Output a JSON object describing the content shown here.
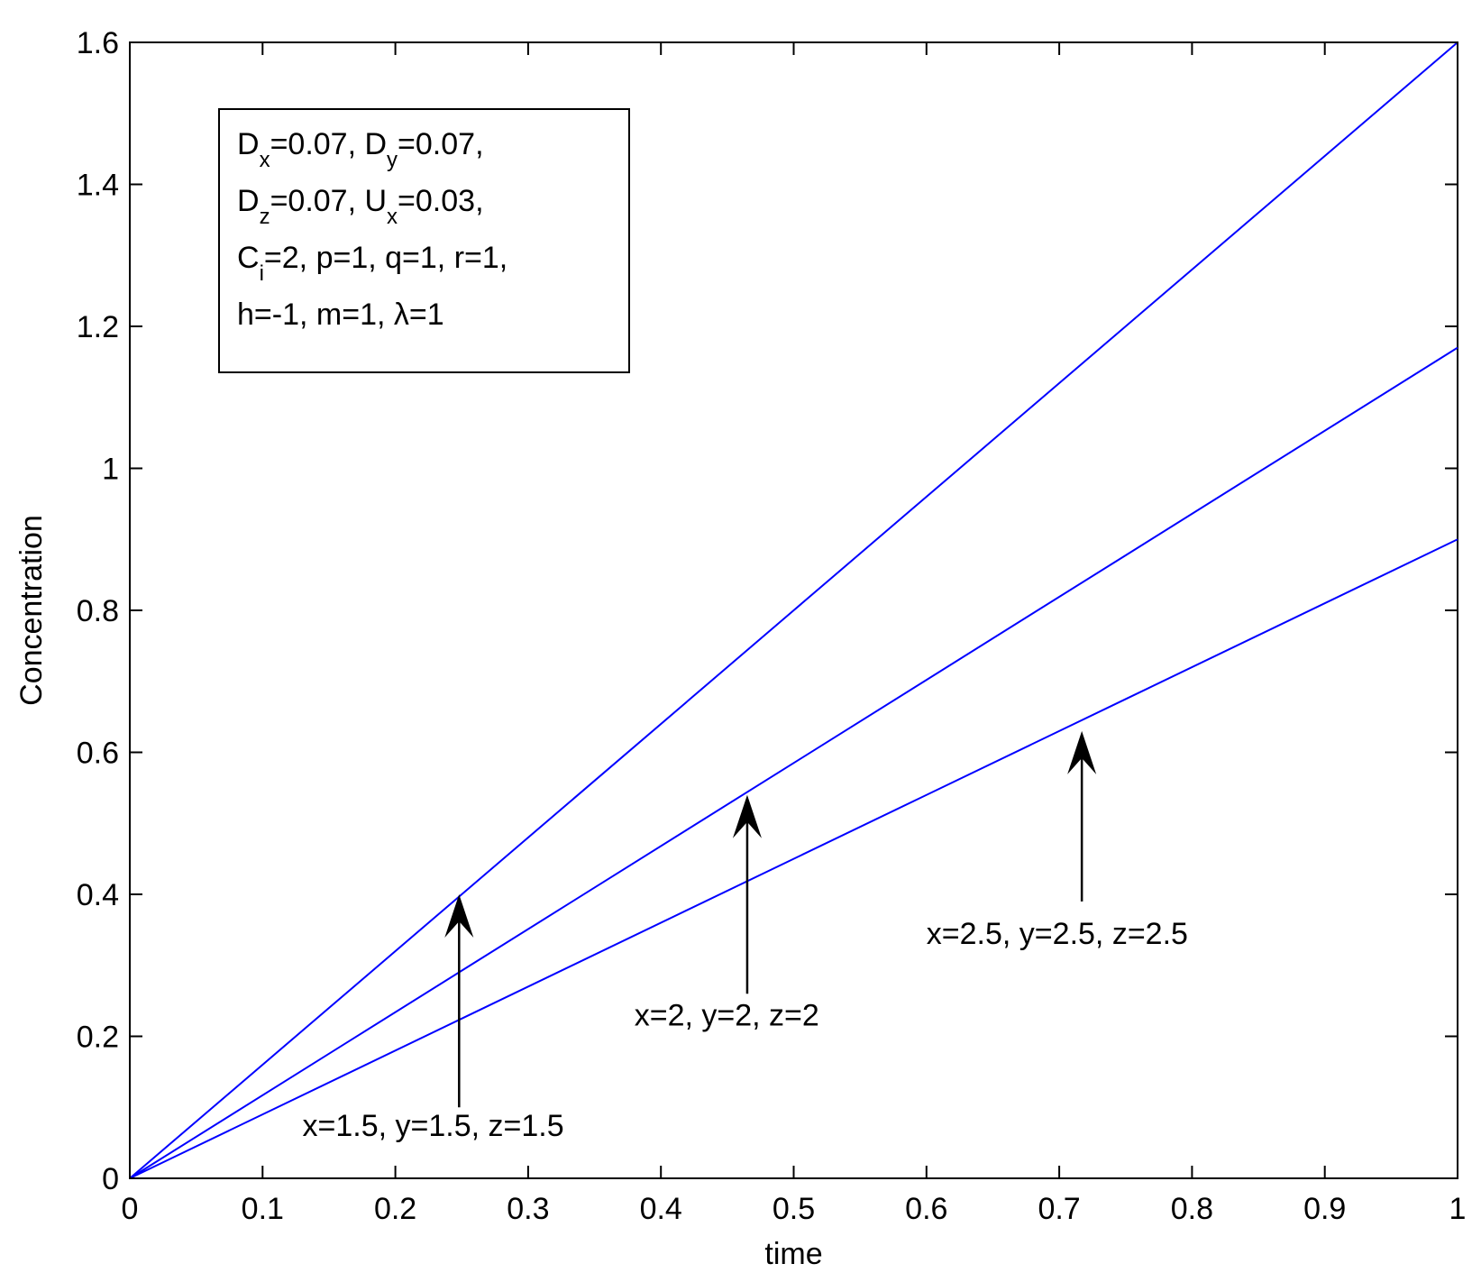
{
  "chart_data": {
    "type": "line",
    "title": "",
    "xlabel": "time",
    "ylabel": "Concentration",
    "xlim": [
      0,
      1
    ],
    "ylim": [
      0,
      1.6
    ],
    "x_ticks": [
      0,
      0.1,
      0.2,
      0.3,
      0.4,
      0.5,
      0.6,
      0.7,
      0.8,
      0.9,
      1
    ],
    "x_tick_labels": [
      "0",
      "0.1",
      "0.2",
      "0.3",
      "0.4",
      "0.5",
      "0.6",
      "0.7",
      "0.8",
      "0.9",
      "1"
    ],
    "y_ticks": [
      0,
      0.2,
      0.4,
      0.6,
      0.8,
      1,
      1.2,
      1.4,
      1.6
    ],
    "y_tick_labels": [
      "0",
      "0.2",
      "0.4",
      "0.6",
      "0.8",
      "1",
      "1.2",
      "1.4",
      "1.6"
    ],
    "grid": false,
    "line_color": "#0000ff",
    "series": [
      {
        "x": [
          0,
          0.25,
          0.5,
          0.75,
          1
        ],
        "values": [
          0,
          0.4,
          0.8,
          1.2,
          1.6
        ]
      },
      {
        "x": [
          0,
          0.25,
          0.5,
          0.75,
          1
        ],
        "values": [
          0,
          0.2925,
          0.585,
          0.8775,
          1.17
        ]
      },
      {
        "x": [
          0,
          0.25,
          0.5,
          0.75,
          1
        ],
        "values": [
          0,
          0.225,
          0.45,
          0.675,
          0.9
        ]
      }
    ],
    "annotations": [
      {
        "text": "x=1.5, y=1.5, z=1.5",
        "tip": [
          0.248,
          0.4
        ],
        "tail": [
          0.248,
          0.1
        ],
        "label_at": [
          0.13,
          0.06
        ]
      },
      {
        "text": "x=2, y=2, z=2",
        "tip": [
          0.465,
          0.54
        ],
        "tail": [
          0.465,
          0.26
        ],
        "label_at": [
          0.38,
          0.215
        ]
      },
      {
        "text": "x=2.5, y=2.5, z=2.5",
        "tip": [
          0.717,
          0.63
        ],
        "tail": [
          0.717,
          0.39
        ],
        "label_at": [
          0.6,
          0.33
        ]
      }
    ],
    "legend_box": {
      "position": "top-left",
      "lines": [
        [
          {
            "t": "D"
          },
          {
            "t": "x",
            "sub": true
          },
          {
            "t": "=0.07, D"
          },
          {
            "t": "y",
            "sub": true
          },
          {
            "t": "=0.07,"
          }
        ],
        [
          {
            "t": "D"
          },
          {
            "t": "z",
            "sub": true
          },
          {
            "t": "=0.07, U"
          },
          {
            "t": "x",
            "sub": true
          },
          {
            "t": "=0.03,"
          }
        ],
        [
          {
            "t": "C"
          },
          {
            "t": "i",
            "sub": true
          },
          {
            "t": "=2, p=1, q=1, r=1,"
          }
        ],
        [
          {
            "t": "h=-1, m=1,  λ=1"
          }
        ]
      ]
    }
  }
}
